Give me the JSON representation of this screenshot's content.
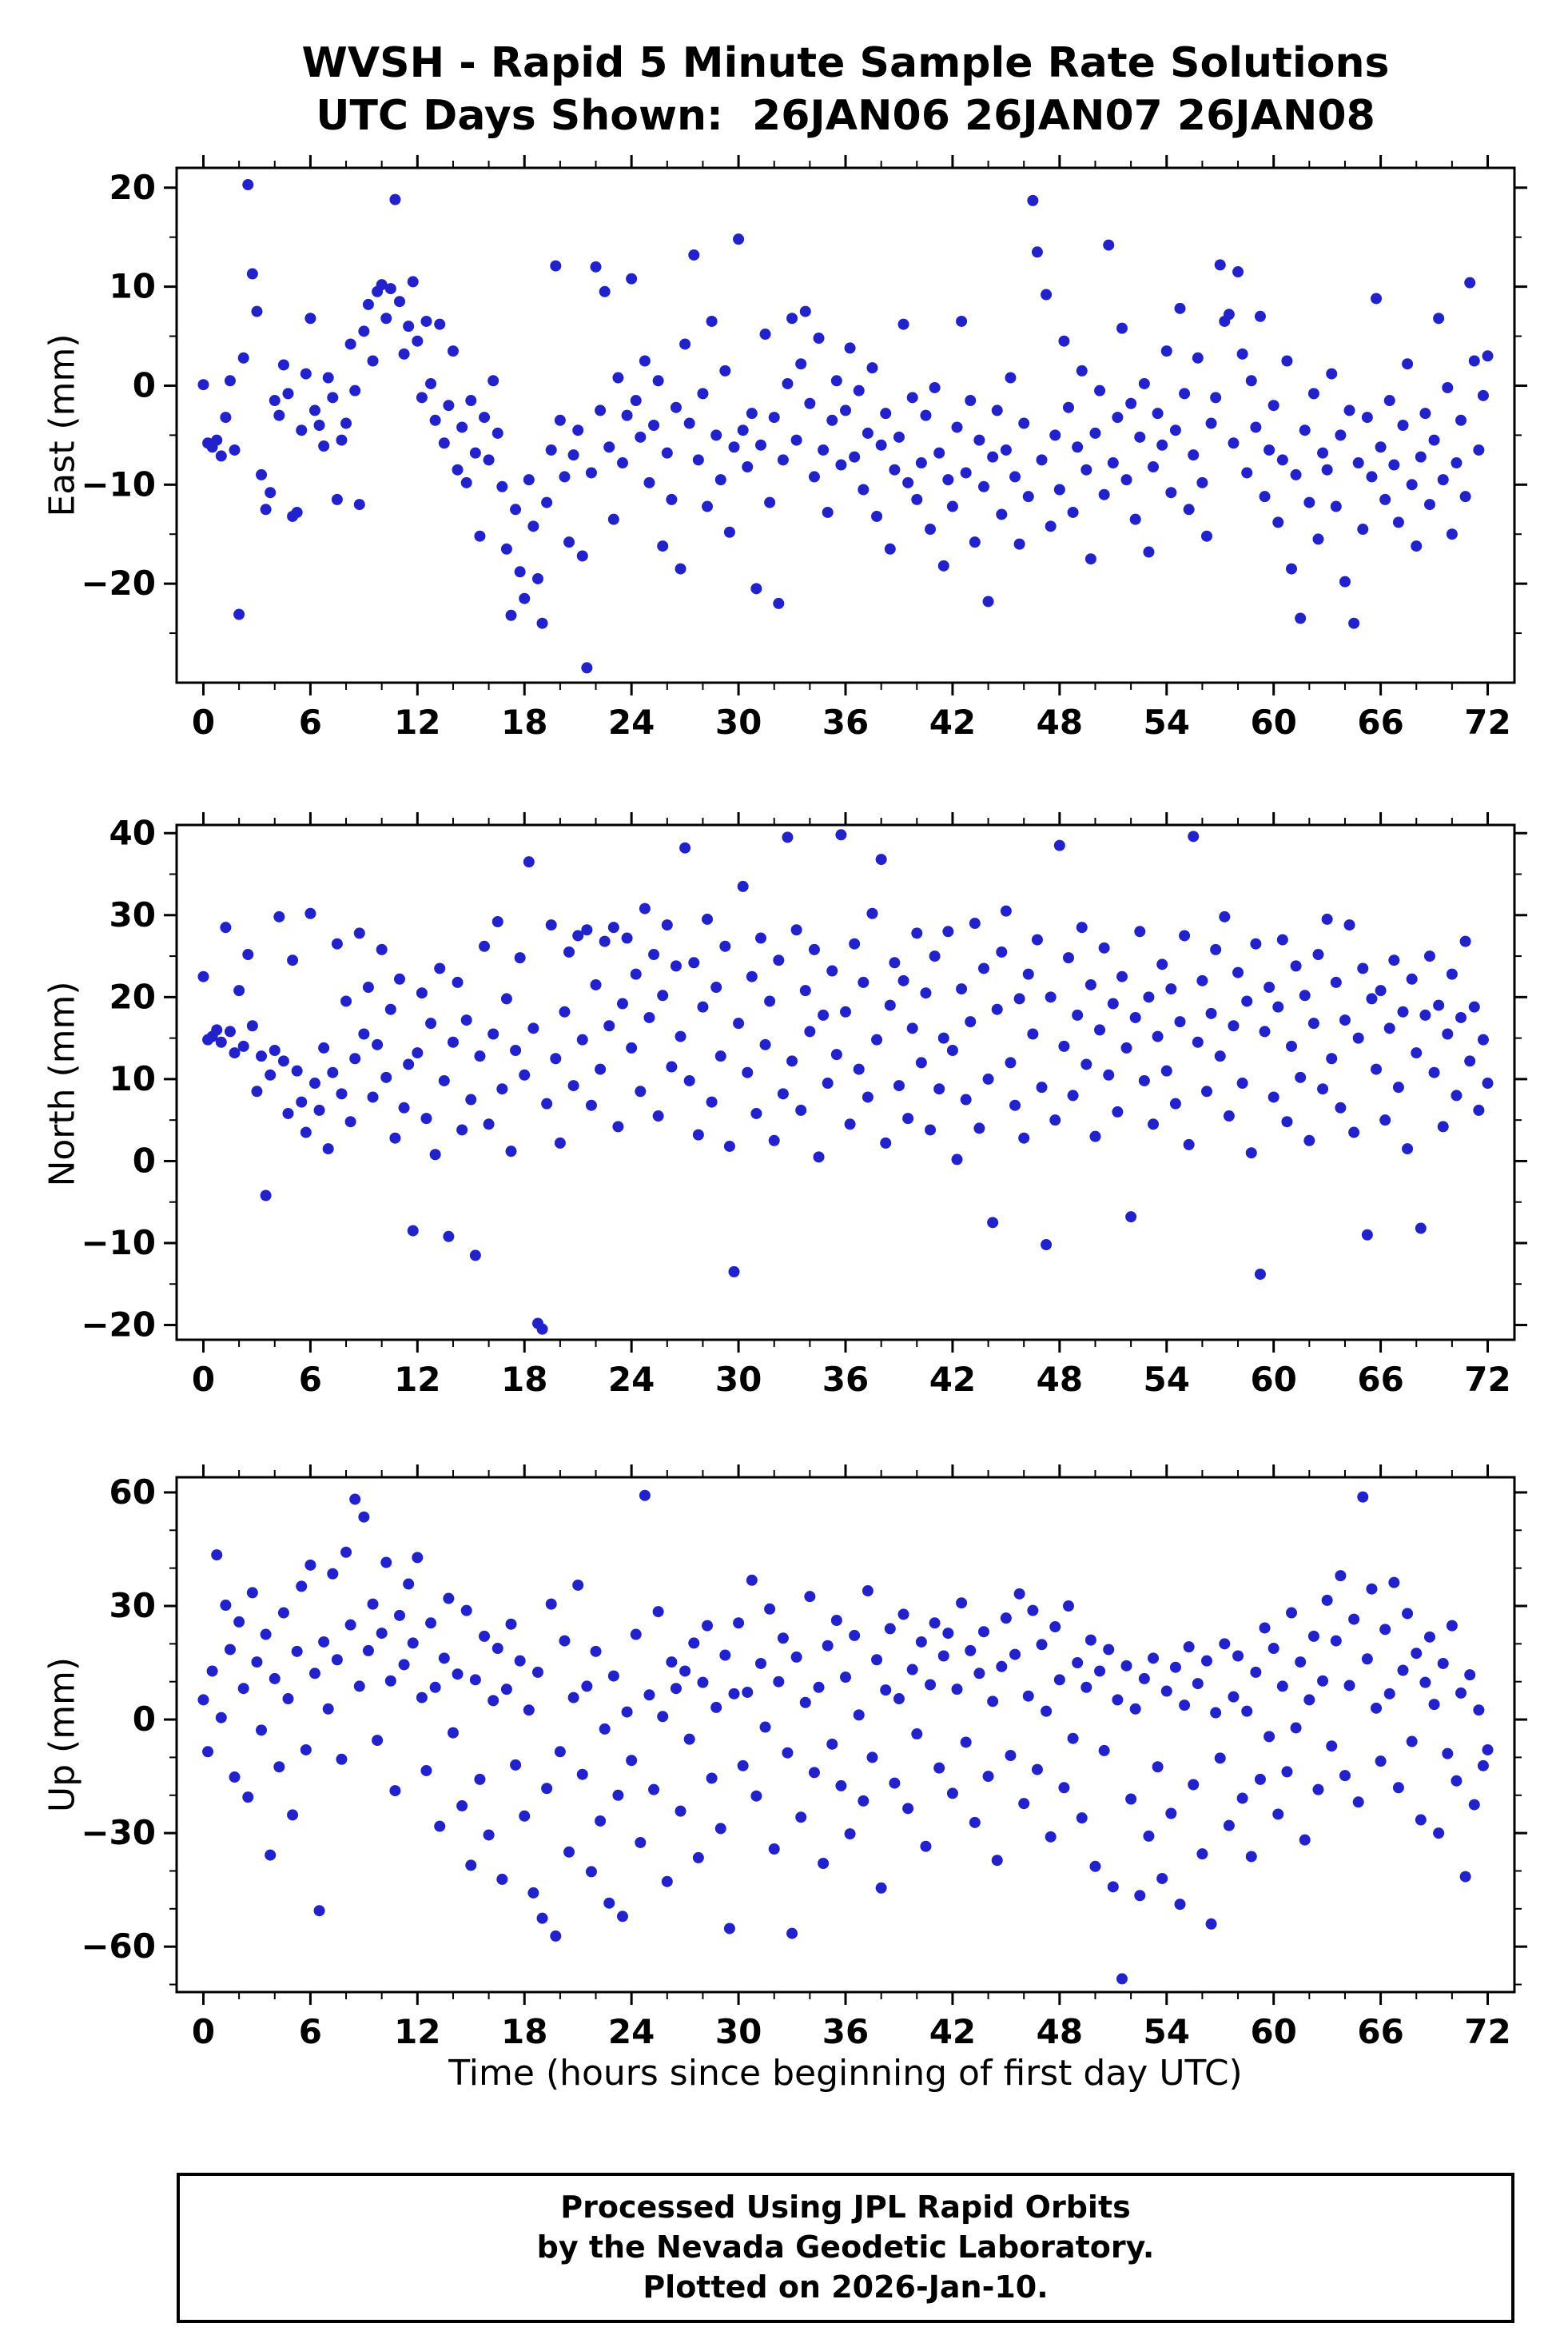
{
  "title": {
    "line1": "WVSH - Rapid 5 Minute Sample Rate Solutions",
    "line2": "UTC Days Shown:  26JAN06 26JAN07 26JAN08"
  },
  "xlabel": "Time (hours since beginning of first day UTC)",
  "footer": {
    "line1": "Processed Using JPL Rapid Orbits",
    "line2": "by the Nevada Geodetic Laboratory.",
    "line3": "Plotted on 2026-Jan-10."
  },
  "colors": {
    "point": "#2222cc",
    "frame": "#000000"
  },
  "chart_data": [
    {
      "type": "scatter",
      "name": "East",
      "ylabel": "East (mm)",
      "xlim": [
        -1.5,
        73.5
      ],
      "ylim": [
        -30,
        22
      ],
      "xticks": [
        0,
        6,
        12,
        18,
        24,
        30,
        36,
        42,
        48,
        54,
        60,
        66,
        72
      ],
      "yticks": [
        -20,
        -10,
        0,
        10,
        20
      ],
      "x_minor": 2,
      "y_minor": 5,
      "x_start": 0,
      "x_step": 0.25,
      "y": [
        0.1,
        -5.8,
        -6.2,
        -5.5,
        -7.1,
        -3.2,
        0.5,
        -6.5,
        -23.1,
        2.8,
        20.3,
        11.3,
        7.5,
        -9.0,
        -12.5,
        -10.8,
        -1.5,
        -3.0,
        2.1,
        -0.8,
        -13.2,
        -12.8,
        -4.5,
        1.2,
        6.8,
        -2.5,
        -4.0,
        -6.1,
        0.8,
        -1.2,
        -11.5,
        -5.5,
        -3.8,
        4.2,
        -0.5,
        -12.0,
        5.5,
        8.2,
        2.5,
        9.5,
        10.2,
        6.8,
        9.8,
        18.8,
        8.5,
        3.2,
        6.0,
        10.5,
        4.5,
        -1.2,
        6.5,
        0.2,
        -3.5,
        6.2,
        -5.8,
        -2.0,
        3.5,
        -8.5,
        -4.2,
        -9.8,
        -1.5,
        -6.8,
        -15.2,
        -3.2,
        -7.5,
        0.5,
        -4.8,
        -10.2,
        -16.5,
        -23.2,
        -12.5,
        -18.8,
        -21.5,
        -9.5,
        -14.2,
        -19.5,
        -24.0,
        -11.8,
        -6.5,
        12.1,
        -3.5,
        -9.2,
        -15.8,
        -7.0,
        -4.5,
        -17.2,
        -28.5,
        -8.8,
        12.0,
        -2.5,
        9.5,
        -6.2,
        -13.5,
        0.8,
        -7.8,
        -3.0,
        10.8,
        -1.5,
        -5.2,
        2.5,
        -9.8,
        -4.0,
        0.5,
        -16.2,
        -6.8,
        -11.5,
        -2.2,
        -18.5,
        4.2,
        -3.8,
        13.2,
        -7.5,
        -0.8,
        -12.2,
        6.5,
        -5.0,
        -9.5,
        1.5,
        -14.8,
        -6.2,
        14.8,
        -4.5,
        -8.2,
        -2.8,
        -20.5,
        -6.0,
        5.2,
        -11.8,
        -3.2,
        -22.0,
        -7.5,
        0.2,
        6.8,
        -5.5,
        2.2,
        7.5,
        -1.8,
        -9.2,
        4.8,
        -6.5,
        -12.8,
        -3.5,
        0.5,
        -8.0,
        -2.5,
        3.8,
        -7.2,
        -0.5,
        -10.5,
        -4.8,
        1.8,
        -13.2,
        -6.0,
        -2.8,
        -16.5,
        -8.5,
        -5.2,
        6.2,
        -9.8,
        -1.2,
        -11.5,
        -7.8,
        -3.0,
        -14.5,
        -0.2,
        -6.8,
        -18.2,
        -9.5,
        -12.2,
        -4.2,
        6.5,
        -8.8,
        -1.5,
        -15.8,
        -5.5,
        -10.2,
        -21.8,
        -7.2,
        -2.5,
        -13.0,
        -6.5,
        0.8,
        -9.2,
        -16.0,
        -3.8,
        -11.2,
        18.7,
        13.5,
        -7.5,
        9.2,
        -14.2,
        -5.0,
        -10.5,
        4.5,
        -2.2,
        -12.8,
        -6.2,
        1.5,
        -8.5,
        -17.5,
        -4.8,
        -0.5,
        -11.0,
        14.2,
        -7.8,
        -3.2,
        5.8,
        -9.5,
        -1.8,
        -13.5,
        -5.2,
        0.2,
        -16.8,
        -8.2,
        -2.8,
        -6.0,
        3.5,
        -10.8,
        -4.5,
        7.8,
        -0.8,
        -12.5,
        -7.0,
        2.8,
        -9.8,
        -15.2,
        -3.8,
        -1.2,
        12.2,
        6.5,
        7.2,
        -5.8,
        11.5,
        3.2,
        -8.8,
        0.5,
        -4.2,
        7.0,
        -11.2,
        -6.5,
        -2.0,
        -13.8,
        -7.5,
        2.5,
        -18.5,
        -9.0,
        -23.5,
        -4.5,
        -11.8,
        -0.8,
        -15.5,
        -6.8,
        -8.5,
        1.2,
        -12.2,
        -5.0,
        -19.8,
        -2.5,
        -24.0,
        -7.8,
        -14.5,
        -3.2,
        -9.2,
        8.8,
        -6.2,
        -11.5,
        -1.5,
        -8.0,
        -13.8,
        -4.0,
        2.2,
        -10.0,
        -16.2,
        -7.2,
        -2.8,
        -12.0,
        -5.5,
        6.8,
        -9.5,
        -0.2,
        -15.0,
        -7.8,
        -3.5,
        -11.2,
        10.4,
        2.5,
        -6.5,
        -1.0,
        3.0
      ]
    },
    {
      "type": "scatter",
      "name": "North",
      "ylabel": "North (mm)",
      "xlim": [
        -1.5,
        73.5
      ],
      "ylim": [
        -21.8,
        41
      ],
      "xticks": [
        0,
        6,
        12,
        18,
        24,
        30,
        36,
        42,
        48,
        54,
        60,
        66,
        72
      ],
      "yticks": [
        -20,
        -10,
        0,
        10,
        20,
        30,
        40
      ],
      "x_minor": 2,
      "y_minor": 5,
      "x_start": 0,
      "x_step": 0.25,
      "y": [
        22.5,
        14.8,
        15.2,
        16.0,
        14.5,
        28.5,
        15.8,
        13.2,
        20.8,
        14.0,
        25.2,
        16.5,
        8.5,
        12.8,
        -4.2,
        10.5,
        13.5,
        29.8,
        12.2,
        5.8,
        24.5,
        11.0,
        7.2,
        3.5,
        30.2,
        9.5,
        6.2,
        13.8,
        1.5,
        10.8,
        26.5,
        8.2,
        19.5,
        4.8,
        12.5,
        27.8,
        15.5,
        21.2,
        7.8,
        14.2,
        25.8,
        10.2,
        18.5,
        2.8,
        22.2,
        6.5,
        11.8,
        -8.5,
        13.2,
        20.5,
        5.2,
        16.8,
        0.8,
        23.5,
        9.8,
        -9.2,
        14.5,
        21.8,
        3.8,
        17.2,
        7.5,
        -11.5,
        12.8,
        26.2,
        4.5,
        15.5,
        29.2,
        8.8,
        19.8,
        1.2,
        13.5,
        24.8,
        10.5,
        36.5,
        16.2,
        -19.8,
        -20.5,
        7.0,
        28.8,
        12.5,
        2.2,
        18.2,
        25.5,
        9.2,
        27.5,
        14.8,
        28.2,
        6.8,
        21.5,
        11.2,
        26.8,
        16.5,
        28.5,
        4.2,
        19.2,
        27.2,
        13.8,
        22.8,
        8.5,
        30.8,
        17.5,
        25.2,
        5.5,
        20.2,
        28.8,
        11.5,
        23.8,
        15.2,
        38.2,
        9.8,
        24.2,
        3.2,
        18.8,
        29.5,
        7.2,
        21.2,
        12.8,
        26.2,
        1.8,
        -13.5,
        16.8,
        33.5,
        10.8,
        22.5,
        5.8,
        27.2,
        14.2,
        19.5,
        2.5,
        24.5,
        8.2,
        39.5,
        12.2,
        28.2,
        6.2,
        20.8,
        15.8,
        25.8,
        0.5,
        17.8,
        9.5,
        23.2,
        13.0,
        39.8,
        18.2,
        4.5,
        26.5,
        11.2,
        21.8,
        7.8,
        30.2,
        14.8,
        36.8,
        2.2,
        19.0,
        24.2,
        9.2,
        22.0,
        5.2,
        16.2,
        27.8,
        12.0,
        20.5,
        3.8,
        25.0,
        8.8,
        15.0,
        28.0,
        13.5,
        0.2,
        21.0,
        7.5,
        17.0,
        29.0,
        4.0,
        23.5,
        10.0,
        -7.5,
        18.5,
        25.5,
        30.5,
        12.0,
        6.8,
        19.8,
        2.8,
        22.8,
        15.5,
        27.0,
        9.0,
        -10.2,
        20.0,
        5.0,
        38.5,
        14.0,
        24.8,
        8.0,
        17.8,
        28.5,
        11.8,
        21.5,
        3.0,
        16.0,
        26.0,
        10.5,
        19.2,
        6.0,
        22.5,
        13.8,
        -6.8,
        17.5,
        28.0,
        9.8,
        20.0,
        4.5,
        15.2,
        24.0,
        11.0,
        21.0,
        7.0,
        17.0,
        27.5,
        2.0,
        39.6,
        14.5,
        22.0,
        8.5,
        18.0,
        25.8,
        12.8,
        29.8,
        5.5,
        16.5,
        23.0,
        9.5,
        19.5,
        1.0,
        26.5,
        -13.8,
        15.8,
        21.2,
        7.8,
        18.8,
        27.0,
        4.8,
        14.0,
        23.8,
        10.2,
        20.2,
        2.5,
        16.8,
        25.2,
        8.8,
        29.5,
        12.5,
        21.8,
        6.5,
        17.2,
        28.8,
        3.5,
        15.0,
        23.5,
        -9.0,
        19.8,
        11.2,
        20.8,
        5.0,
        16.2,
        24.5,
        9.0,
        18.2,
        1.5,
        22.2,
        13.2,
        -8.2,
        17.8,
        25.0,
        10.8,
        19.0,
        4.2,
        15.5,
        22.8,
        8.0,
        17.5,
        26.8,
        12.2,
        18.8,
        6.2,
        14.8,
        9.5
      ]
    },
    {
      "type": "scatter",
      "name": "Up",
      "ylabel": "Up (mm)",
      "xlim": [
        -1.5,
        73.5
      ],
      "ylim": [
        -72,
        64
      ],
      "xticks": [
        0,
        6,
        12,
        18,
        24,
        30,
        36,
        42,
        48,
        54,
        60,
        66,
        72
      ],
      "yticks": [
        -60,
        -30,
        0,
        30,
        60
      ],
      "x_minor": 2,
      "y_minor": 10,
      "x_start": 0,
      "x_step": 0.25,
      "y": [
        5.2,
        -8.5,
        12.8,
        43.5,
        0.5,
        30.2,
        18.5,
        -15.2,
        25.8,
        8.2,
        -20.5,
        33.5,
        15.2,
        -2.8,
        22.5,
        -35.8,
        10.8,
        -12.5,
        28.2,
        5.5,
        -25.2,
        18.0,
        35.2,
        -8.0,
        40.8,
        12.2,
        -50.5,
        20.5,
        2.8,
        38.5,
        15.8,
        -10.5,
        44.2,
        25.0,
        58.2,
        8.8,
        53.5,
        18.2,
        30.5,
        -5.5,
        22.8,
        41.5,
        10.2,
        -18.8,
        27.5,
        14.5,
        35.8,
        20.2,
        42.8,
        5.8,
        -13.5,
        25.5,
        8.5,
        -28.2,
        16.2,
        32.0,
        -3.5,
        12.0,
        -22.8,
        28.8,
        -38.5,
        10.5,
        -15.8,
        22.0,
        -30.5,
        5.0,
        18.8,
        -42.2,
        8.0,
        25.2,
        -12.0,
        15.5,
        -25.5,
        2.5,
        -45.8,
        12.5,
        -52.5,
        -18.2,
        30.5,
        -57.2,
        -8.5,
        20.8,
        -35.0,
        5.8,
        35.5,
        -14.5,
        8.8,
        -40.2,
        18.0,
        -26.8,
        -2.5,
        -48.5,
        11.5,
        -20.0,
        -52.0,
        2.0,
        -10.8,
        22.5,
        -32.5,
        59.2,
        6.5,
        -18.5,
        28.5,
        0.8,
        -42.8,
        15.2,
        8.2,
        -24.2,
        12.8,
        -5.2,
        20.2,
        -36.5,
        9.8,
        24.8,
        -15.5,
        3.2,
        -28.8,
        17.0,
        -55.2,
        6.8,
        25.5,
        -12.2,
        7.2,
        36.8,
        -20.2,
        14.8,
        -2.0,
        29.2,
        -34.2,
        10.0,
        21.5,
        -8.8,
        -56.5,
        16.5,
        -25.8,
        4.5,
        32.5,
        -14.0,
        8.5,
        -38.0,
        19.5,
        -6.5,
        26.2,
        -17.5,
        11.2,
        -30.2,
        22.2,
        1.2,
        -21.5,
        34.0,
        -10.0,
        15.8,
        -44.5,
        7.8,
        24.0,
        -16.8,
        5.5,
        27.8,
        -23.5,
        13.2,
        -3.8,
        20.5,
        -33.5,
        9.2,
        25.5,
        -12.8,
        16.8,
        22.8,
        -19.5,
        8.0,
        30.8,
        -6.0,
        18.2,
        -27.2,
        12.2,
        23.2,
        -15.0,
        4.8,
        -37.2,
        14.0,
        26.8,
        -9.5,
        17.2,
        33.2,
        -22.2,
        6.2,
        28.8,
        -13.2,
        19.8,
        2.2,
        -31.0,
        24.5,
        10.5,
        -18.0,
        30.0,
        -5.0,
        15.0,
        -26.0,
        8.5,
        21.0,
        -38.8,
        12.8,
        -8.2,
        18.5,
        -44.2,
        5.2,
        -68.5,
        14.2,
        -21.0,
        2.8,
        -46.5,
        10.8,
        -30.8,
        16.2,
        -12.5,
        -42.0,
        7.5,
        -24.8,
        13.8,
        -48.8,
        3.8,
        19.2,
        -17.2,
        9.5,
        -35.5,
        15.5,
        -54.0,
        1.8,
        -10.2,
        20.0,
        -28.0,
        6.0,
        16.8,
        -20.8,
        2.2,
        -36.2,
        12.5,
        -15.8,
        24.2,
        -4.5,
        18.8,
        -25.0,
        8.8,
        -13.8,
        28.2,
        -2.2,
        15.2,
        -31.8,
        5.2,
        22.0,
        -18.5,
        10.2,
        31.5,
        -7.0,
        20.8,
        38.0,
        -14.8,
        9.0,
        26.5,
        -21.8,
        58.8,
        16.0,
        34.5,
        3.0,
        -11.0,
        23.8,
        6.8,
        36.2,
        -18.0,
        13.0,
        28.0,
        -5.8,
        17.5,
        -26.5,
        9.8,
        21.8,
        4.0,
        -30.0,
        14.8,
        -9.0,
        24.8,
        -16.2,
        7.0,
        -41.5,
        11.8,
        -22.5,
        2.5,
        -12.2,
        -8.0
      ]
    }
  ]
}
